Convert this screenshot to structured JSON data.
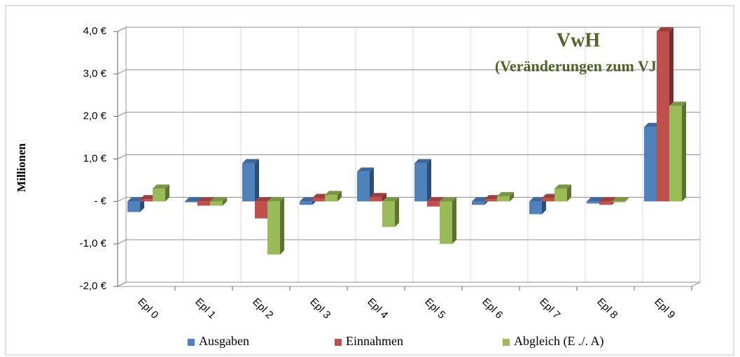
{
  "chart_data": {
    "type": "bar3d",
    "title": "VwH",
    "subtitle": "(Veränderungen zum VJ)",
    "y_label": "Millionen",
    "categories": [
      "Epl 0",
      "Epl 1",
      "Epl 2",
      "Epl 3",
      "Epl 4",
      "Epl 5",
      "Epl 6",
      "Epl 7",
      "Epl 8",
      "Epl 9"
    ],
    "series": [
      {
        "name": "Ausgaben",
        "color": "#4f81bd",
        "values": [
          -0.25,
          -0.02,
          0.9,
          -0.08,
          0.7,
          0.9,
          -0.08,
          -0.3,
          -0.05,
          1.75
        ]
      },
      {
        "name": "Einnahmen",
        "color": "#c0504d",
        "values": [
          0.05,
          -0.1,
          -0.4,
          0.08,
          0.1,
          -0.12,
          0.05,
          0.08,
          -0.08,
          4.0
        ]
      },
      {
        "name": "Abgleich (E ./. A)",
        "color": "#9bbb59",
        "values": [
          0.3,
          -0.1,
          -1.25,
          0.15,
          -0.6,
          -1.0,
          0.12,
          0.3,
          -0.02,
          2.25
        ]
      }
    ],
    "ylim": [
      -2,
      4
    ],
    "yticks": [
      {
        "value": -2,
        "label": "-2,0 €"
      },
      {
        "value": -1,
        "label": "-1,0 €"
      },
      {
        "value": 0,
        "label": "- €"
      },
      {
        "value": 1,
        "label": "1,0 €"
      },
      {
        "value": 2,
        "label": "2,0 €"
      },
      {
        "value": 3,
        "label": "3,0 €"
      },
      {
        "value": 4,
        "label": "4,0 €"
      }
    ],
    "grid": true,
    "legend": "bottom"
  }
}
